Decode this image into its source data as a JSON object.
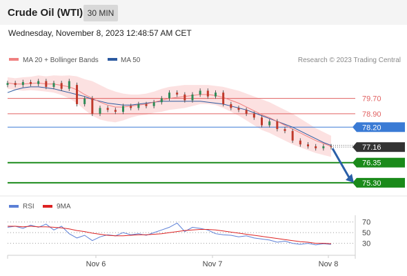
{
  "header": {
    "title": "Crude Oil (WTI)",
    "timeframe": "30 MIN",
    "timestamp": "Wednesday, November 8, 2023 12:48:57 AM CET"
  },
  "legend": {
    "ma20_label": "MA 20 + Bollinger Bands",
    "ma50_label": "MA 50",
    "credit": "Research © 2023 Trading Central",
    "rsi_label": "RSI",
    "rsi_ma_label": "9MA"
  },
  "colors": {
    "ma20": "#f08080",
    "ma50": "#2c5aa0",
    "bollinger_fill": "#fbd9d9",
    "resistance": "#e06060",
    "pivot": "#3a7bd5",
    "support": "#1a8a1a",
    "last_price": "#333333",
    "arrow": "#2a5fa8",
    "rsi": "#5b7fd6",
    "rsi_ma": "#dd2222"
  },
  "chart_data": [
    {
      "type": "candlestick",
      "title": "Crude Oil (WTI)",
      "timeframe": "30 MIN",
      "x_labels": [
        "Nov 6",
        "Nov 7",
        "Nov 8"
      ],
      "ylim": [
        74.9,
        80.8
      ],
      "close": [
        80.5,
        80.4,
        80.55,
        80.45,
        80.6,
        80.3,
        80.5,
        80.2,
        80.6,
        79.4,
        79.7,
        78.9,
        79.2,
        79.1,
        79.0,
        79.3,
        79.2,
        79.4,
        79.3,
        79.5,
        79.7,
        80.0,
        79.9,
        79.6,
        79.9,
        80.1,
        79.8,
        80.0,
        79.4,
        79.2,
        79.1,
        78.9,
        78.7,
        78.3,
        78.5,
        78.1,
        78.0,
        77.5,
        77.3,
        77.2,
        77.1,
        77.2,
        77.16
      ],
      "open": [
        80.4,
        80.5,
        80.4,
        80.55,
        80.45,
        80.6,
        80.3,
        80.5,
        80.2,
        80.4,
        79.4,
        79.7,
        78.9,
        79.2,
        79.1,
        79.0,
        79.3,
        79.2,
        79.4,
        79.3,
        79.5,
        79.7,
        80.0,
        79.9,
        79.6,
        79.9,
        80.1,
        79.8,
        80.0,
        79.4,
        79.2,
        79.1,
        78.9,
        78.7,
        78.3,
        78.5,
        78.1,
        78.0,
        77.5,
        77.3,
        77.2,
        77.1,
        77.2
      ],
      "ma20": [
        80.5,
        80.45,
        80.45,
        80.48,
        80.5,
        80.45,
        80.45,
        80.38,
        80.3,
        80.15,
        79.9,
        79.7,
        79.5,
        79.35,
        79.25,
        79.25,
        79.3,
        79.35,
        79.4,
        79.5,
        79.6,
        79.7,
        79.75,
        79.8,
        79.85,
        79.9,
        79.9,
        79.85,
        79.75,
        79.6,
        79.45,
        79.25,
        79.05,
        78.85,
        78.7,
        78.5,
        78.3,
        78.1,
        77.9,
        77.7,
        77.5,
        77.35,
        77.2
      ],
      "ma50": [
        80.0,
        80.15,
        80.25,
        80.3,
        80.3,
        80.25,
        80.2,
        80.1,
        80.0,
        79.9,
        79.8,
        79.65,
        79.55,
        79.45,
        79.4,
        79.35,
        79.35,
        79.4,
        79.45,
        79.5,
        79.55,
        79.55,
        79.55,
        79.55,
        79.55,
        79.55,
        79.5,
        79.45,
        79.4,
        79.3,
        79.2,
        79.1,
        78.95,
        78.8,
        78.65,
        78.5,
        78.35,
        78.2,
        78.0,
        77.8,
        77.6,
        77.4,
        77.25
      ],
      "bb_width": [
        0.3,
        0.3,
        0.35,
        0.35,
        0.4,
        0.4,
        0.45,
        0.5,
        0.6,
        0.7,
        0.8,
        0.9,
        0.9,
        0.85,
        0.8,
        0.7,
        0.6,
        0.55,
        0.55,
        0.55,
        0.6,
        0.6,
        0.6,
        0.6,
        0.55,
        0.5,
        0.5,
        0.5,
        0.55,
        0.6,
        0.65,
        0.7,
        0.75,
        0.8,
        0.8,
        0.8,
        0.8,
        0.8,
        0.75,
        0.7,
        0.65,
        0.6,
        0.55
      ],
      "levels": [
        {
          "value": 79.7,
          "label": "79.70",
          "kind": "resistance"
        },
        {
          "value": 78.9,
          "label": "78.90",
          "kind": "resistance"
        },
        {
          "value": 78.2,
          "label": "78.20",
          "kind": "pivot"
        },
        {
          "value": 76.35,
          "label": "76.35",
          "kind": "support"
        },
        {
          "value": 75.3,
          "label": "75.30",
          "kind": "support"
        }
      ],
      "last_price": {
        "value": 77.16,
        "label": "77.16"
      },
      "forecast_arrow": {
        "from": 77.16,
        "to": 75.3
      }
    },
    {
      "type": "line",
      "title": "RSI",
      "ylim": [
        10,
        80
      ],
      "y_ticks": [
        "70",
        "50",
        "30"
      ],
      "series": [
        {
          "name": "RSI",
          "values": [
            60,
            62,
            58,
            64,
            60,
            66,
            55,
            62,
            48,
            40,
            45,
            35,
            42,
            46,
            44,
            50,
            46,
            48,
            45,
            50,
            55,
            60,
            68,
            52,
            60,
            58,
            55,
            48,
            46,
            45,
            42,
            44,
            40,
            38,
            36,
            32,
            34,
            30,
            28,
            30,
            27,
            29,
            28
          ]
        },
        {
          "name": "9MA",
          "values": [
            62,
            62,
            61,
            62,
            61,
            61,
            60,
            59,
            57,
            54,
            52,
            49,
            47,
            45,
            44,
            44,
            45,
            46,
            46,
            47,
            48,
            50,
            52,
            54,
            55,
            56,
            56,
            55,
            53,
            51,
            49,
            47,
            45,
            43,
            41,
            39,
            37,
            35,
            33,
            32,
            30,
            30,
            29
          ]
        }
      ]
    }
  ]
}
